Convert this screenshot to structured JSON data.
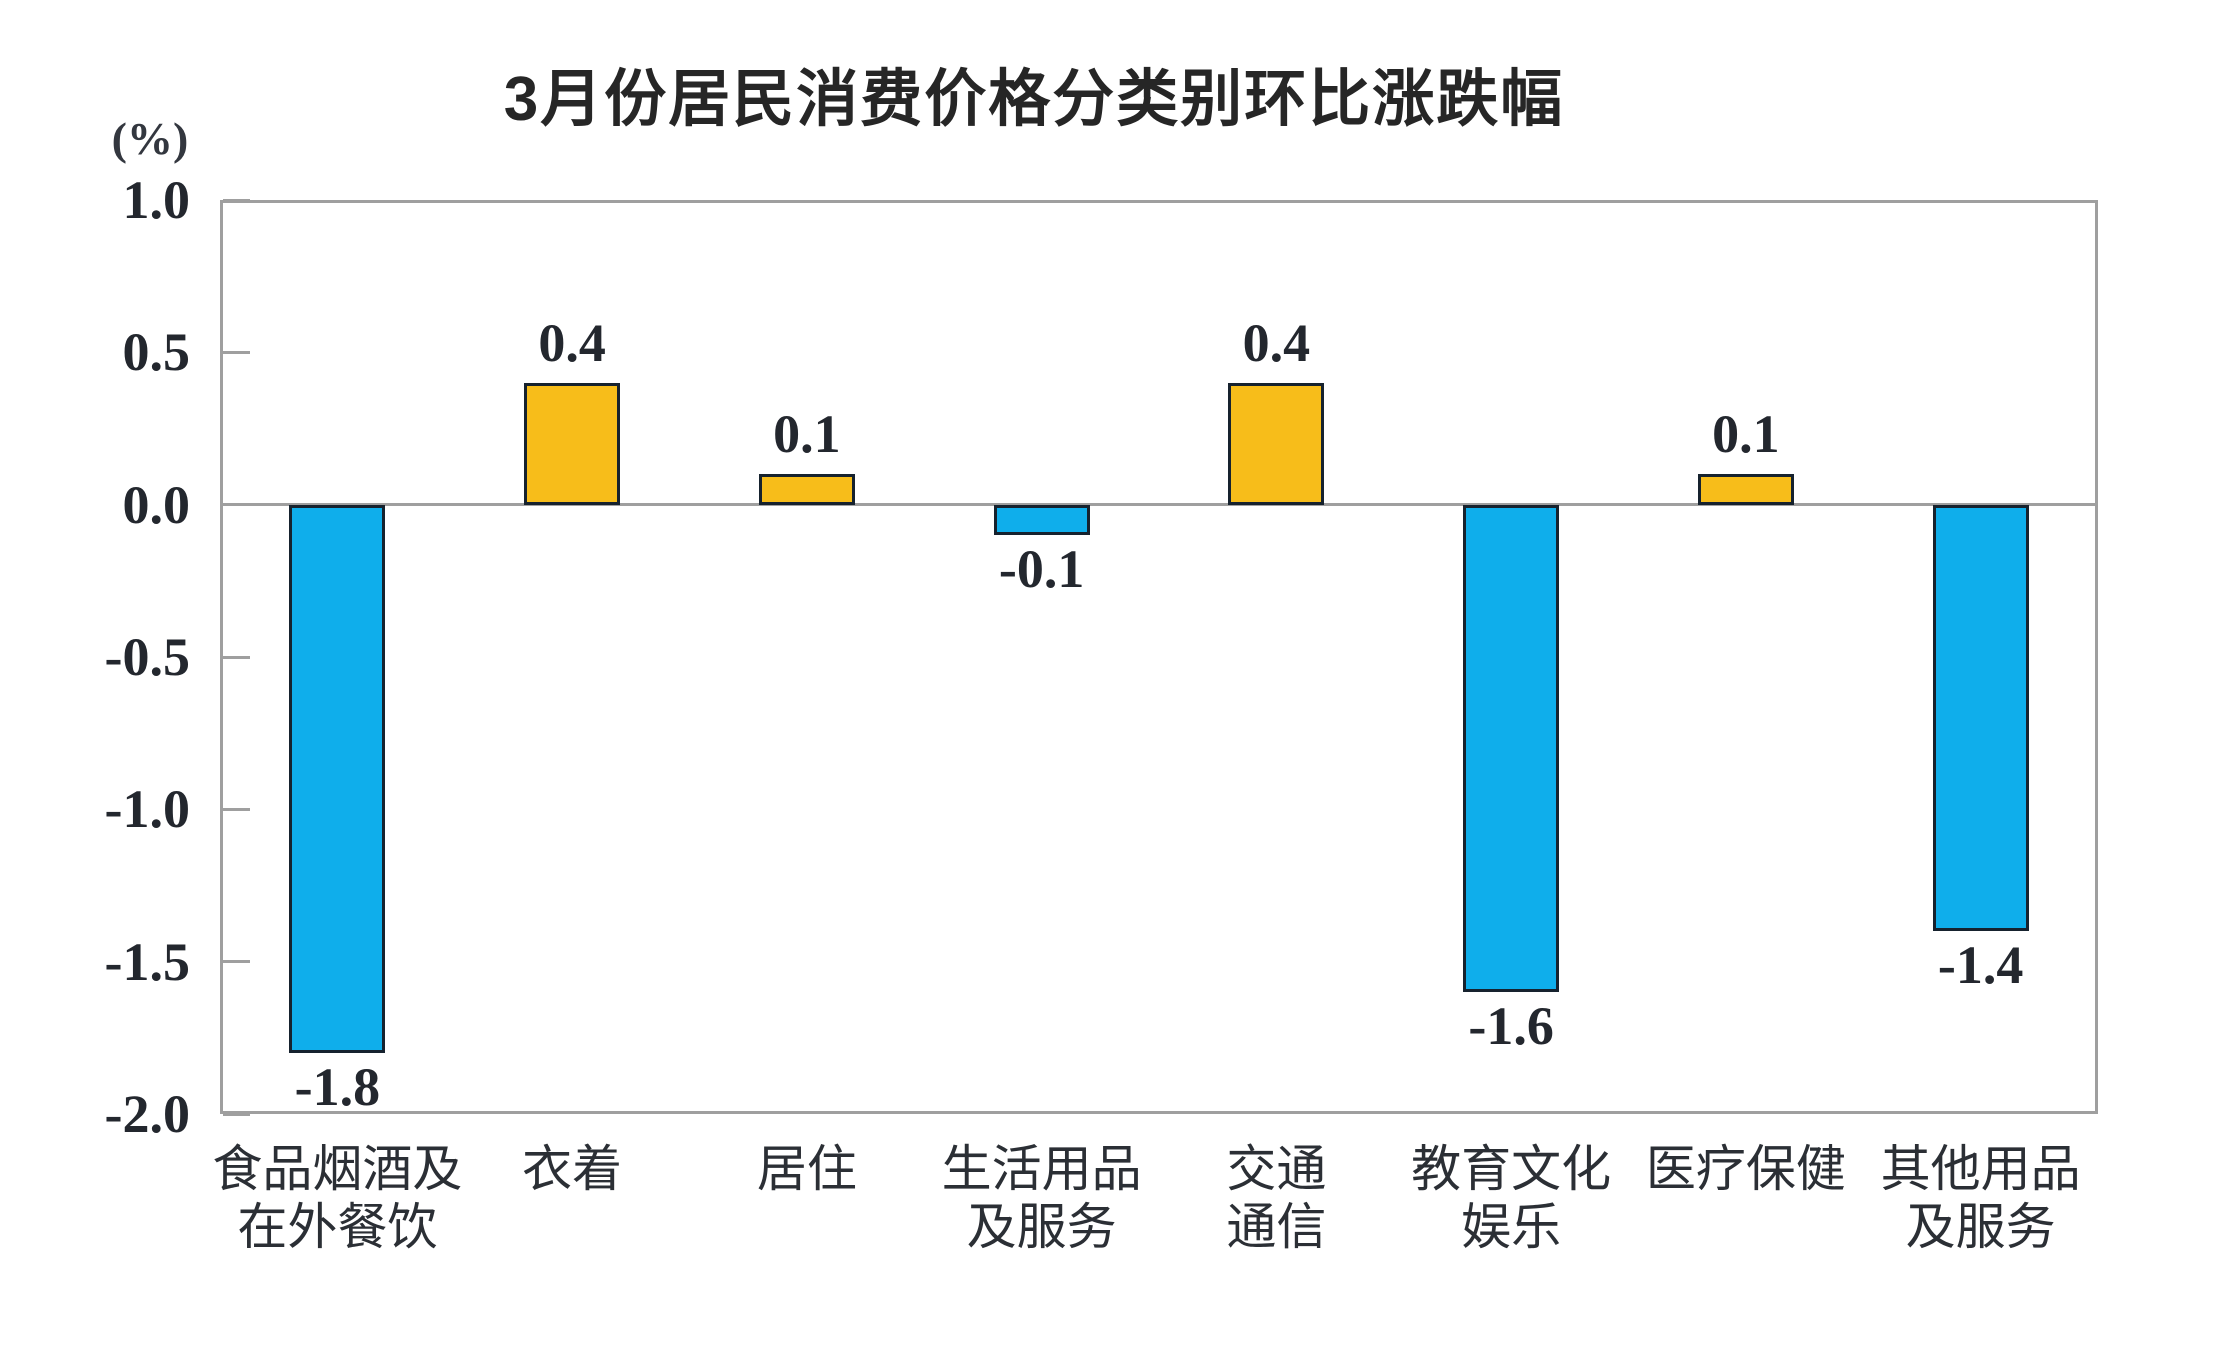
{
  "chart_data": {
    "type": "bar",
    "title": "3月份居民消费价格分类别环比涨跌幅",
    "unit_label": "(%)",
    "categories": [
      "食品烟酒及\n在外餐饮",
      "衣着",
      "居住",
      "生活用品\n及服务",
      "交通\n通信",
      "教育文化\n娱乐",
      "医疗保健",
      "其他用品\n及服务"
    ],
    "values": [
      -1.8,
      0.4,
      0.1,
      -0.1,
      0.4,
      -1.6,
      0.1,
      -1.4
    ],
    "value_labels": [
      "-1.8",
      "0.4",
      "0.1",
      "-0.1",
      "0.4",
      "-1.6",
      "0.1",
      "-1.4"
    ],
    "y_ticks": [
      "1.0",
      "0.5",
      "0.0",
      "-0.5",
      "-1.0",
      "-1.5",
      "-2.0"
    ],
    "ylim": [
      -2.0,
      1.0
    ],
    "xlabel": "",
    "ylabel": "(%)",
    "grid": false,
    "legend": "none",
    "colors": {
      "positive_bar": "#F7BD1A",
      "negative_bar": "#0FAEEB",
      "bar_border": "#16222e",
      "axis": "#9f9f9f",
      "text": "#23272e"
    }
  }
}
